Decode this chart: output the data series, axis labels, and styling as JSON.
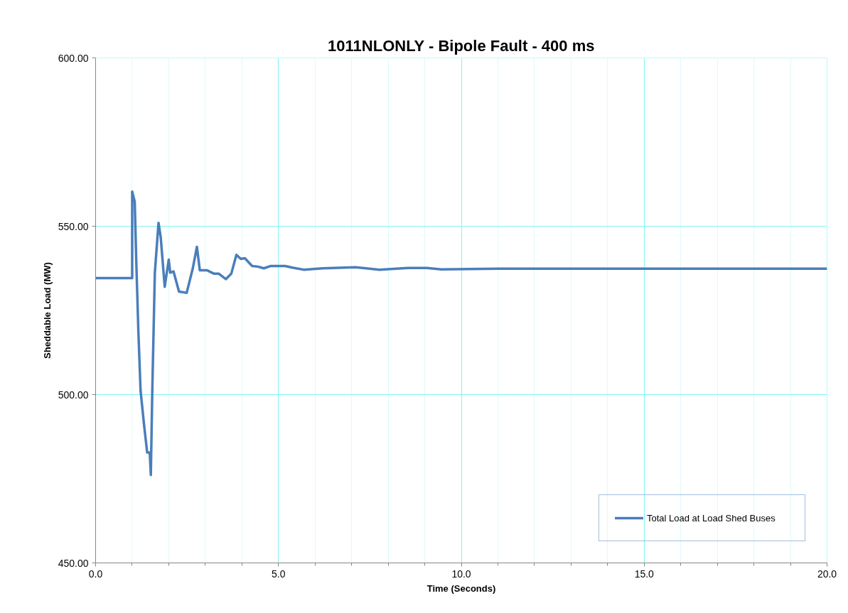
{
  "chart_data": {
    "type": "line",
    "title": "1011NLONLY - Bipole Fault - 400 ms",
    "xlabel": "Time (Seconds)",
    "ylabel": "Sheddable Load (MW)",
    "xlim": [
      0,
      20
    ],
    "ylim": [
      450,
      600
    ],
    "xticks": [
      {
        "value": 0,
        "label": "0.0"
      },
      {
        "value": 5,
        "label": "5.0"
      },
      {
        "value": 10,
        "label": "10.0"
      },
      {
        "value": 15,
        "label": "15.0"
      },
      {
        "value": 20,
        "label": "20.0"
      }
    ],
    "yticks": [
      {
        "value": 450,
        "label": "450.00"
      },
      {
        "value": 500,
        "label": "500.00"
      },
      {
        "value": 550,
        "label": "550.00"
      },
      {
        "value": 600,
        "label": "600.00"
      }
    ],
    "grid": true,
    "legend": "bottom right",
    "marker": "none",
    "line_style": "solid",
    "series": [
      {
        "name": "Total Load at Load Shed Buses",
        "color": "#4a7ebb",
        "x": [
          0,
          1.0,
          1.0,
          1.07,
          1.11,
          1.17,
          1.23,
          1.33,
          1.41,
          1.48,
          1.51,
          1.55,
          1.62,
          1.72,
          1.78,
          1.89,
          2.0,
          2.04,
          2.13,
          2.28,
          2.49,
          2.66,
          2.77,
          2.85,
          3.05,
          3.24,
          3.37,
          3.56,
          3.71,
          3.85,
          3.97,
          4.08,
          4.28,
          4.44,
          4.6,
          4.79,
          5.18,
          5.38,
          5.69,
          6.21,
          7.11,
          7.76,
          8.54,
          9.06,
          9.45,
          11.0,
          20.0
        ],
        "values": [
          534.6,
          534.6,
          560.3,
          557.3,
          540.4,
          518.6,
          501.1,
          490.5,
          482.8,
          482.8,
          476.1,
          501.1,
          536.2,
          551.0,
          546.8,
          532.0,
          540.1,
          536.2,
          536.6,
          530.6,
          530.2,
          537.6,
          543.9,
          536.9,
          536.9,
          535.9,
          535.9,
          534.3,
          535.9,
          541.5,
          540.3,
          540.5,
          538.2,
          538.0,
          537.5,
          538.2,
          538.2,
          537.7,
          537.1,
          537.5,
          537.8,
          537.1,
          537.6,
          537.6,
          537.2,
          537.4,
          537.4
        ]
      }
    ]
  }
}
